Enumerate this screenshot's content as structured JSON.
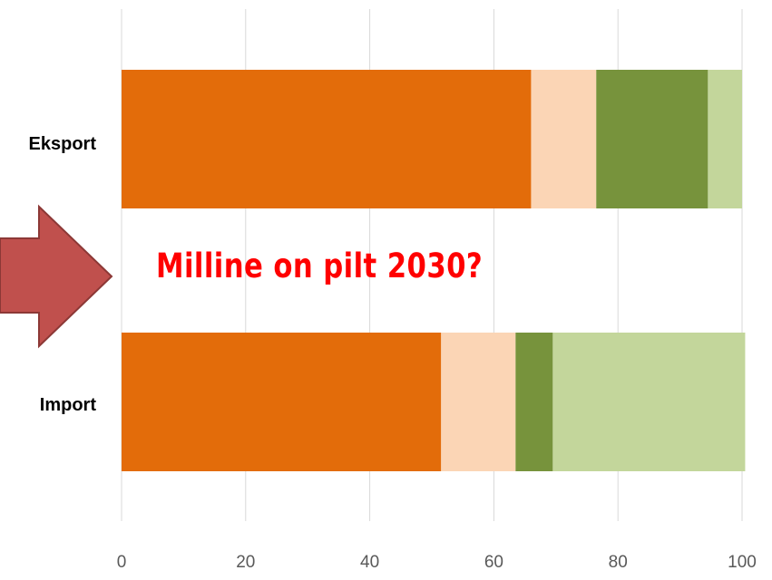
{
  "chart_data": {
    "type": "bar",
    "orientation": "horizontal",
    "stacked": true,
    "categories": [
      "Eksport",
      "Import"
    ],
    "series": [
      {
        "values": [
          66,
          51.5
        ],
        "color": "#E36C0A"
      },
      {
        "values": [
          10.5,
          12
        ],
        "color": "#FBD5B5"
      },
      {
        "values": [
          18,
          6
        ],
        "color": "#77933C"
      },
      {
        "values": [
          5.5,
          31
        ],
        "color": "#C3D69B"
      }
    ],
    "xlim": [
      0,
      100
    ],
    "xticks": [
      0,
      20,
      40,
      60,
      80,
      100
    ],
    "grid": "vertical",
    "legend": "none"
  },
  "annotation": {
    "text": "Milline on pilt 2030?",
    "color": "#FF0000"
  },
  "arrow": {
    "fill": "#C0504D",
    "stroke": "#8C3836"
  }
}
